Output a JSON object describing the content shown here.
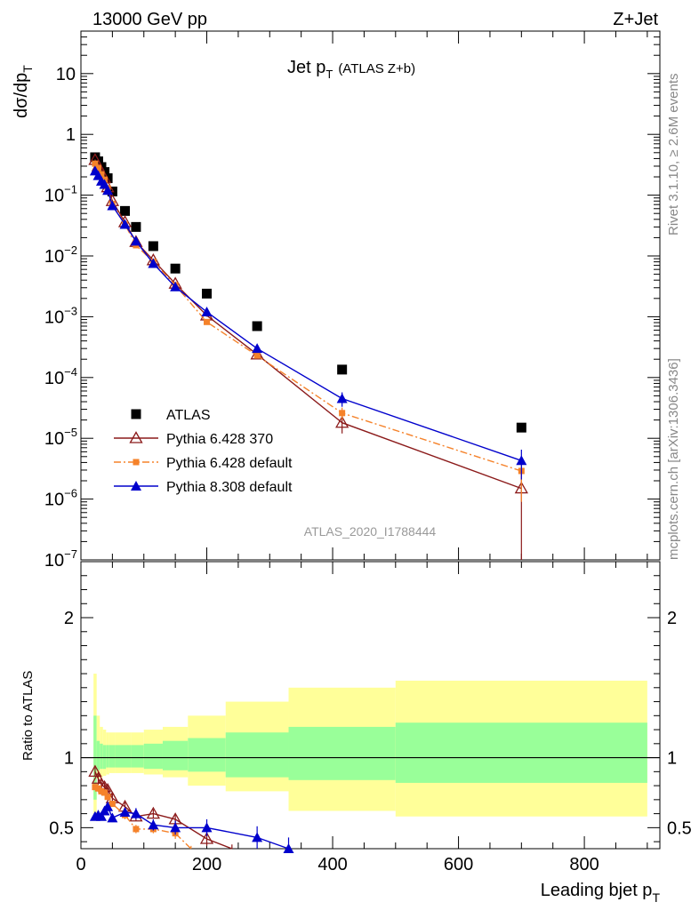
{
  "header": {
    "left": "13000 GeV pp",
    "right": "Z+Jet"
  },
  "title": {
    "main": "Jet p",
    "sub": "T",
    "extra": "(ATLAS Z+b)"
  },
  "side_labels": {
    "rivet": "Rivet 3.1.10, ≥ 2.6M events",
    "mcplots": "mcplots.cern.ch [arXiv:1306.3436]"
  },
  "watermark": "ATLAS_2020_I1788444",
  "chart_data": [
    {
      "type": "scatter",
      "panel": "main",
      "ylabel": "dσ/dp",
      "ylabel_sub": "T",
      "yscale": "log",
      "xlim": [
        0,
        920
      ],
      "ylim": [
        1e-07,
        50
      ],
      "y_ticks": [
        {
          "v": 10,
          "label": "10"
        },
        {
          "v": 1,
          "label": "1"
        },
        {
          "v": 0.1,
          "label": "10",
          "exp": "−1"
        },
        {
          "v": 0.01,
          "label": "10",
          "exp": "−2"
        },
        {
          "v": 0.001,
          "label": "10",
          "exp": "−3"
        },
        {
          "v": 0.0001,
          "label": "10",
          "exp": "−4"
        },
        {
          "v": 1e-05,
          "label": "10",
          "exp": "−5"
        },
        {
          "v": 1e-06,
          "label": "10",
          "exp": "−6"
        },
        {
          "v": 1e-07,
          "label": "10",
          "exp": "−7"
        }
      ],
      "legend_position": "lower-left",
      "series": [
        {
          "name": "ATLAS",
          "color": "#000000",
          "marker": "square",
          "x": [
            22.5,
            27.5,
            32.5,
            37.5,
            42.5,
            50,
            70,
            87.5,
            115,
            150,
            200,
            280,
            415,
            700
          ],
          "y": [
            0.42,
            0.36,
            0.29,
            0.24,
            0.19,
            0.115,
            0.055,
            0.03,
            0.0145,
            0.0062,
            0.0024,
            0.0007,
            0.000135,
            1.5e-05
          ]
        },
        {
          "name": "Pythia 6.428 370",
          "color": "#8b1a1a",
          "marker": "triangle-open",
          "line": "solid",
          "x": [
            22.5,
            27.5,
            32.5,
            37.5,
            42.5,
            50,
            70,
            87.5,
            115,
            150,
            200,
            280,
            415,
            700
          ],
          "y": [
            0.38,
            0.3,
            0.23,
            0.19,
            0.135,
            0.08,
            0.036,
            0.017,
            0.0085,
            0.0035,
            0.00105,
            0.00024,
            1.8e-05,
            1.5e-06
          ],
          "err": [
            0.01,
            0.01,
            0.01,
            0.005,
            0.005,
            0.003,
            0.002,
            0.001,
            0.0005,
            0.0002,
            5e-05,
            2e-05,
            6e-06,
            1.4e-06
          ]
        },
        {
          "name": "Pythia 6.428 default",
          "color": "#f5822a",
          "marker": "square-small",
          "line": "dashdot",
          "x": [
            22.5,
            27.5,
            32.5,
            37.5,
            42.5,
            50,
            70,
            87.5,
            115,
            150,
            200,
            280,
            415,
            700
          ],
          "y": [
            0.33,
            0.28,
            0.22,
            0.18,
            0.13,
            0.072,
            0.033,
            0.015,
            0.008,
            0.0033,
            0.00082,
            0.00023,
            2.6e-05,
            2.9e-06
          ],
          "err": [
            0.01,
            0.01,
            0.01,
            0.005,
            0.005,
            0.003,
            0.002,
            0.001,
            0.0005,
            0.0002,
            5e-05,
            2e-05,
            6e-06,
            2e-06
          ]
        },
        {
          "name": "Pythia 8.308 default",
          "color": "#0000cc",
          "marker": "triangle",
          "line": "solid",
          "x": [
            22.5,
            27.5,
            32.5,
            37.5,
            42.5,
            50,
            70,
            87.5,
            115,
            150,
            200,
            280,
            415,
            700
          ],
          "y": [
            0.25,
            0.21,
            0.17,
            0.15,
            0.12,
            0.067,
            0.033,
            0.0175,
            0.0075,
            0.0031,
            0.0012,
            0.0003,
            4.5e-05,
            4.3e-06
          ],
          "err": [
            0.01,
            0.01,
            0.01,
            0.005,
            0.005,
            0.003,
            0.002,
            0.001,
            0.0005,
            0.0002,
            5e-05,
            3e-05,
            1.2e-05,
            2.2e-06
          ]
        }
      ]
    },
    {
      "type": "scatter",
      "panel": "ratio",
      "ylabel": "Ratio to ATLAS",
      "xlabel": "Leading bjet p",
      "xlabel_sub": "T",
      "xlim": [
        0,
        920
      ],
      "ylim": [
        0.35,
        2.4
      ],
      "x_ticks": [
        0,
        200,
        400,
        600,
        800
      ],
      "y_ticks": [
        0.5,
        1,
        2
      ],
      "bins": [
        20,
        25,
        30,
        35,
        40,
        45,
        55,
        80,
        100,
        130,
        170,
        230,
        330,
        500,
        900
      ],
      "band_outer": [
        [
          0.6,
          1.6
        ],
        [
          0.85,
          1.3
        ],
        [
          0.86,
          1.22
        ],
        [
          0.87,
          1.2
        ],
        [
          0.88,
          1.18
        ],
        [
          0.89,
          1.18
        ],
        [
          0.89,
          1.18
        ],
        [
          0.89,
          1.18
        ],
        [
          0.88,
          1.2
        ],
        [
          0.86,
          1.22
        ],
        [
          0.8,
          1.3
        ],
        [
          0.76,
          1.4
        ],
        [
          0.62,
          1.5
        ],
        [
          0.58,
          1.55
        ]
      ],
      "band_inner": [
        [
          0.7,
          1.3
        ],
        [
          0.91,
          1.12
        ],
        [
          0.92,
          1.1
        ],
        [
          0.92,
          1.09
        ],
        [
          0.93,
          1.09
        ],
        [
          0.93,
          1.09
        ],
        [
          0.93,
          1.09
        ],
        [
          0.93,
          1.09
        ],
        [
          0.92,
          1.1
        ],
        [
          0.91,
          1.12
        ],
        [
          0.9,
          1.14
        ],
        [
          0.86,
          1.18
        ],
        [
          0.84,
          1.22
        ],
        [
          0.82,
          1.25
        ]
      ],
      "series": [
        {
          "name": "Pythia 6.428 370",
          "color": "#8b1a1a",
          "marker": "triangle-open",
          "line": "solid",
          "x": [
            22.5,
            27.5,
            32.5,
            37.5,
            42.5,
            50,
            70,
            87.5,
            115,
            150,
            200,
            240
          ],
          "y": [
            0.9,
            0.85,
            0.81,
            0.79,
            0.77,
            0.71,
            0.65,
            0.58,
            0.6,
            0.56,
            0.42,
            0.33
          ],
          "err": [
            0.03,
            0.03,
            0.03,
            0.03,
            0.03,
            0.03,
            0.03,
            0.03,
            0.03,
            0.04,
            0.05,
            0.05
          ]
        },
        {
          "name": "Pythia 6.428 default",
          "color": "#f5822a",
          "marker": "square-small",
          "line": "dashdot",
          "x": [
            22.5,
            27.5,
            32.5,
            37.5,
            42.5,
            50,
            70,
            87.5,
            115,
            150,
            175
          ],
          "y": [
            0.79,
            0.78,
            0.76,
            0.75,
            0.72,
            0.67,
            0.59,
            0.49,
            0.49,
            0.46,
            0.33
          ],
          "err": [
            0.02,
            0.02,
            0.02,
            0.02,
            0.02,
            0.02,
            0.03,
            0.03,
            0.03,
            0.04,
            0.04
          ]
        },
        {
          "name": "Pythia 8.308 default",
          "color": "#0000cc",
          "marker": "triangle",
          "line": "solid",
          "x": [
            22.5,
            27.5,
            32.5,
            37.5,
            42.5,
            50,
            70,
            87.5,
            115,
            150,
            200,
            280,
            330
          ],
          "y": [
            0.58,
            0.59,
            0.58,
            0.62,
            0.65,
            0.57,
            0.61,
            0.6,
            0.52,
            0.5,
            0.5,
            0.43,
            0.35
          ],
          "err": [
            0.02,
            0.02,
            0.02,
            0.03,
            0.03,
            0.03,
            0.03,
            0.04,
            0.04,
            0.05,
            0.06,
            0.08,
            0.08
          ]
        }
      ]
    }
  ]
}
